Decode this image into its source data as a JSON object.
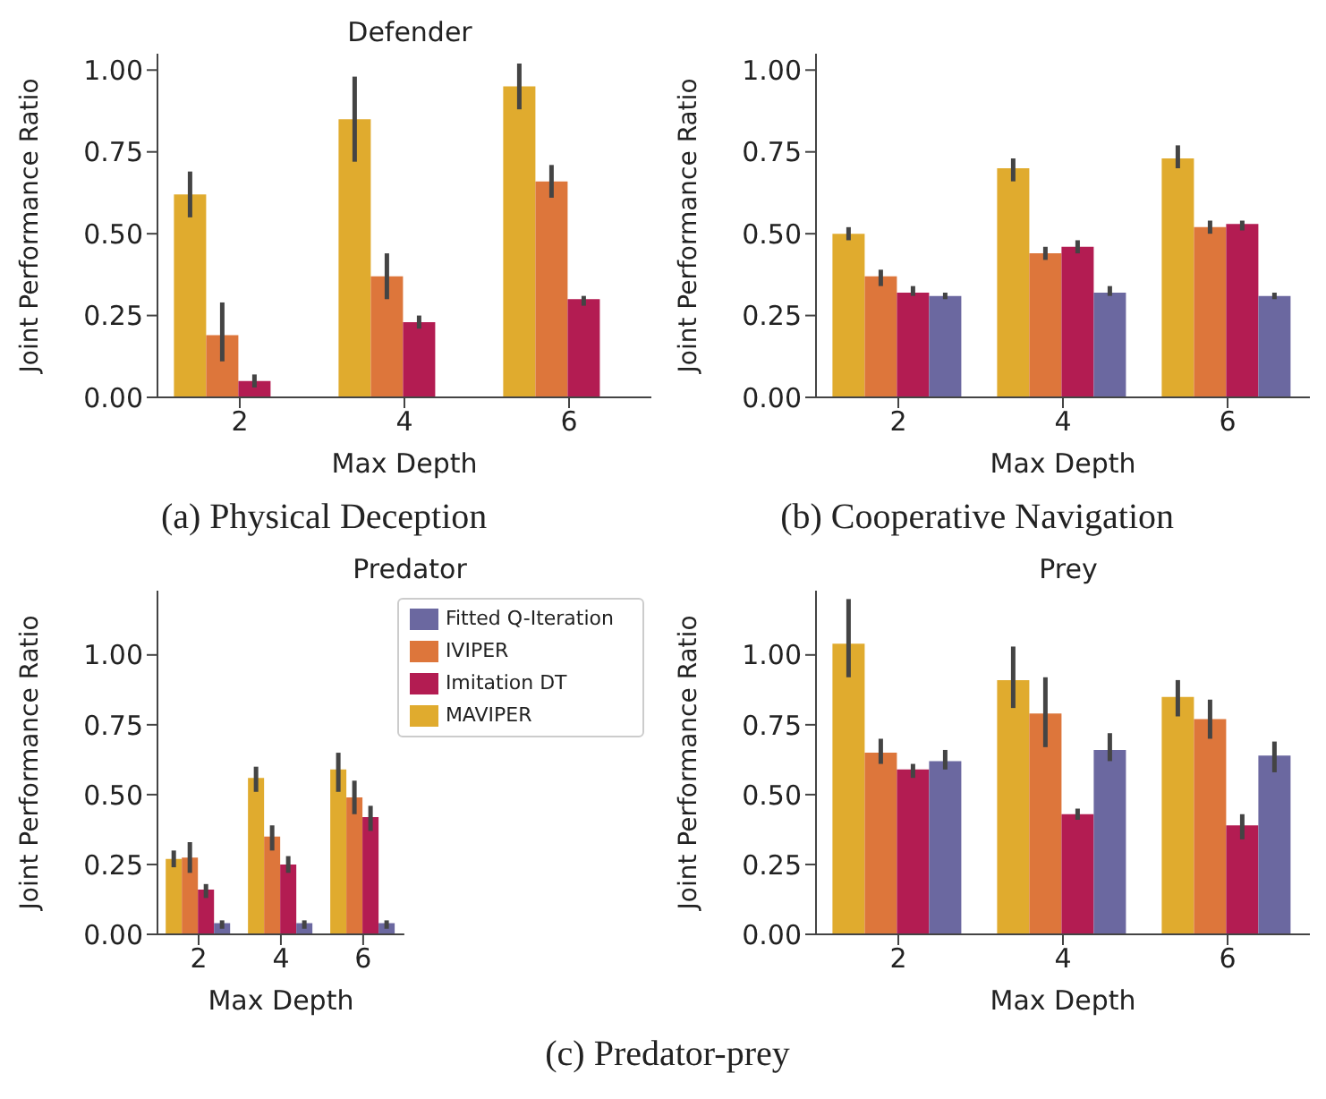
{
  "chart_data": [
    {
      "type": "bar",
      "title": "Defender",
      "xlabel": "Max Depth",
      "ylabel": "Joint Performance Ratio",
      "categories": [
        "2",
        "4",
        "6"
      ],
      "ylim": [
        0,
        1.05
      ],
      "yticks": [
        {
          "value": 0,
          "label": "0.00"
        },
        {
          "value": 0.25,
          "label": "0.25"
        },
        {
          "value": 0.5,
          "label": "0.50"
        },
        {
          "value": 0.75,
          "label": "0.75"
        },
        {
          "value": 1,
          "label": "1.00"
        }
      ],
      "legend": false,
      "grid": false,
      "annotations": [
        "(a) Physical Deception"
      ],
      "series": [
        {
          "color": "#e0ab2e",
          "values": [
            0.62,
            0.85,
            0.95
          ],
          "errors": [
            [
              0.55,
              0.69
            ],
            [
              0.72,
              0.98
            ],
            [
              0.88,
              1.02
            ]
          ]
        },
        {
          "color": "#dd763b",
          "values": [
            0.19,
            0.37,
            0.66
          ],
          "errors": [
            [
              0.11,
              0.29
            ],
            [
              0.3,
              0.44
            ],
            [
              0.61,
              0.71
            ]
          ]
        },
        {
          "color": "#b31c52",
          "values": [
            0.05,
            0.23,
            0.3
          ],
          "errors": [
            [
              0.03,
              0.07
            ],
            [
              0.21,
              0.25
            ],
            [
              0.28,
              0.31
            ]
          ]
        },
        {
          "color": "#6b68a0",
          "values": [
            null,
            null,
            null
          ]
        }
      ]
    },
    {
      "type": "bar",
      "xlabel": "Max Depth",
      "ylabel": "Joint Performance Ratio",
      "categories": [
        "2",
        "4",
        "6"
      ],
      "ylim": [
        0,
        1.05
      ],
      "yticks": [
        {
          "value": 0,
          "label": "0.00"
        },
        {
          "value": 0.25,
          "label": "0.25"
        },
        {
          "value": 0.5,
          "label": "0.50"
        },
        {
          "value": 0.75,
          "label": "0.75"
        },
        {
          "value": 1,
          "label": "1.00"
        }
      ],
      "legend": false,
      "grid": false,
      "annotations": [
        "(b) Cooperative Navigation"
      ],
      "series": [
        {
          "color": "#e0ab2e",
          "values": [
            0.5,
            0.7,
            0.73
          ],
          "errors": [
            [
              0.48,
              0.52
            ],
            [
              0.66,
              0.73
            ],
            [
              0.7,
              0.77
            ]
          ]
        },
        {
          "color": "#dd763b",
          "values": [
            0.37,
            0.44,
            0.52
          ],
          "errors": [
            [
              0.34,
              0.39
            ],
            [
              0.42,
              0.46
            ],
            [
              0.5,
              0.54
            ]
          ]
        },
        {
          "color": "#b31c52",
          "values": [
            0.32,
            0.46,
            0.53
          ],
          "errors": [
            [
              0.31,
              0.34
            ],
            [
              0.44,
              0.48
            ],
            [
              0.51,
              0.54
            ]
          ]
        },
        {
          "color": "#6b68a0",
          "values": [
            0.31,
            0.32,
            0.31
          ],
          "errors": [
            [
              0.3,
              0.32
            ],
            [
              0.31,
              0.34
            ],
            [
              0.3,
              0.32
            ]
          ]
        }
      ]
    },
    {
      "type": "bar",
      "title": "Predator",
      "xlabel": "Max Depth",
      "ylabel": "Joint Performance Ratio",
      "categories": [
        "2",
        "4",
        "6"
      ],
      "ylim": [
        0,
        1.23
      ],
      "yticks": [
        {
          "value": 0,
          "label": "0.00"
        },
        {
          "value": 0.25,
          "label": "0.25"
        },
        {
          "value": 0.5,
          "label": "0.50"
        },
        {
          "value": 0.75,
          "label": "0.75"
        },
        {
          "value": 1,
          "label": "1.00"
        }
      ],
      "legend": "top right",
      "grid": false,
      "annotations": [
        "(c) Predator-prey"
      ],
      "series": [
        {
          "name": "MAVIPER",
          "color": "#e0ab2e",
          "values": [
            0.27,
            0.56,
            0.59
          ],
          "errors": [
            [
              0.24,
              0.3
            ],
            [
              0.51,
              0.6
            ],
            [
              0.51,
              0.65
            ]
          ]
        },
        {
          "name": "IVIPER",
          "color": "#dd763b",
          "values": [
            0.275,
            0.35,
            0.49
          ],
          "errors": [
            [
              0.22,
              0.33
            ],
            [
              0.3,
              0.39
            ],
            [
              0.43,
              0.55
            ]
          ]
        },
        {
          "name": "Imitation DT",
          "color": "#b31c52",
          "values": [
            0.16,
            0.25,
            0.42
          ],
          "errors": [
            [
              0.13,
              0.18
            ],
            [
              0.22,
              0.28
            ],
            [
              0.37,
              0.46
            ]
          ]
        },
        {
          "name": "Fitted Q-Iteration",
          "color": "#6b68a0",
          "values": [
            0.04,
            0.04,
            0.04
          ],
          "errors": [
            [
              0.02,
              0.05
            ],
            [
              0.02,
              0.05
            ],
            [
              0.02,
              0.05
            ]
          ]
        }
      ]
    },
    {
      "type": "bar",
      "title": "Prey",
      "xlabel": "Max Depth",
      "ylabel": "Joint Performance Ratio",
      "categories": [
        "2",
        "4",
        "6"
      ],
      "ylim": [
        0,
        1.23
      ],
      "yticks": [
        {
          "value": 0,
          "label": "0.00"
        },
        {
          "value": 0.25,
          "label": "0.25"
        },
        {
          "value": 0.5,
          "label": "0.50"
        },
        {
          "value": 0.75,
          "label": "0.75"
        },
        {
          "value": 1,
          "label": "1.00"
        }
      ],
      "legend": false,
      "grid": false,
      "series": [
        {
          "color": "#e0ab2e",
          "values": [
            1.04,
            0.91,
            0.85
          ],
          "errors": [
            [
              0.92,
              1.2
            ],
            [
              0.81,
              1.03
            ],
            [
              0.78,
              0.91
            ]
          ]
        },
        {
          "color": "#dd763b",
          "values": [
            0.65,
            0.79,
            0.77
          ],
          "errors": [
            [
              0.61,
              0.7
            ],
            [
              0.67,
              0.92
            ],
            [
              0.7,
              0.84
            ]
          ]
        },
        {
          "color": "#b31c52",
          "values": [
            0.59,
            0.43,
            0.39
          ],
          "errors": [
            [
              0.56,
              0.61
            ],
            [
              0.41,
              0.45
            ],
            [
              0.34,
              0.43
            ]
          ]
        },
        {
          "color": "#6b68a0",
          "values": [
            0.62,
            0.66,
            0.64
          ],
          "errors": [
            [
              0.59,
              0.66
            ],
            [
              0.62,
              0.72
            ],
            [
              0.58,
              0.69
            ]
          ]
        }
      ]
    }
  ]
}
